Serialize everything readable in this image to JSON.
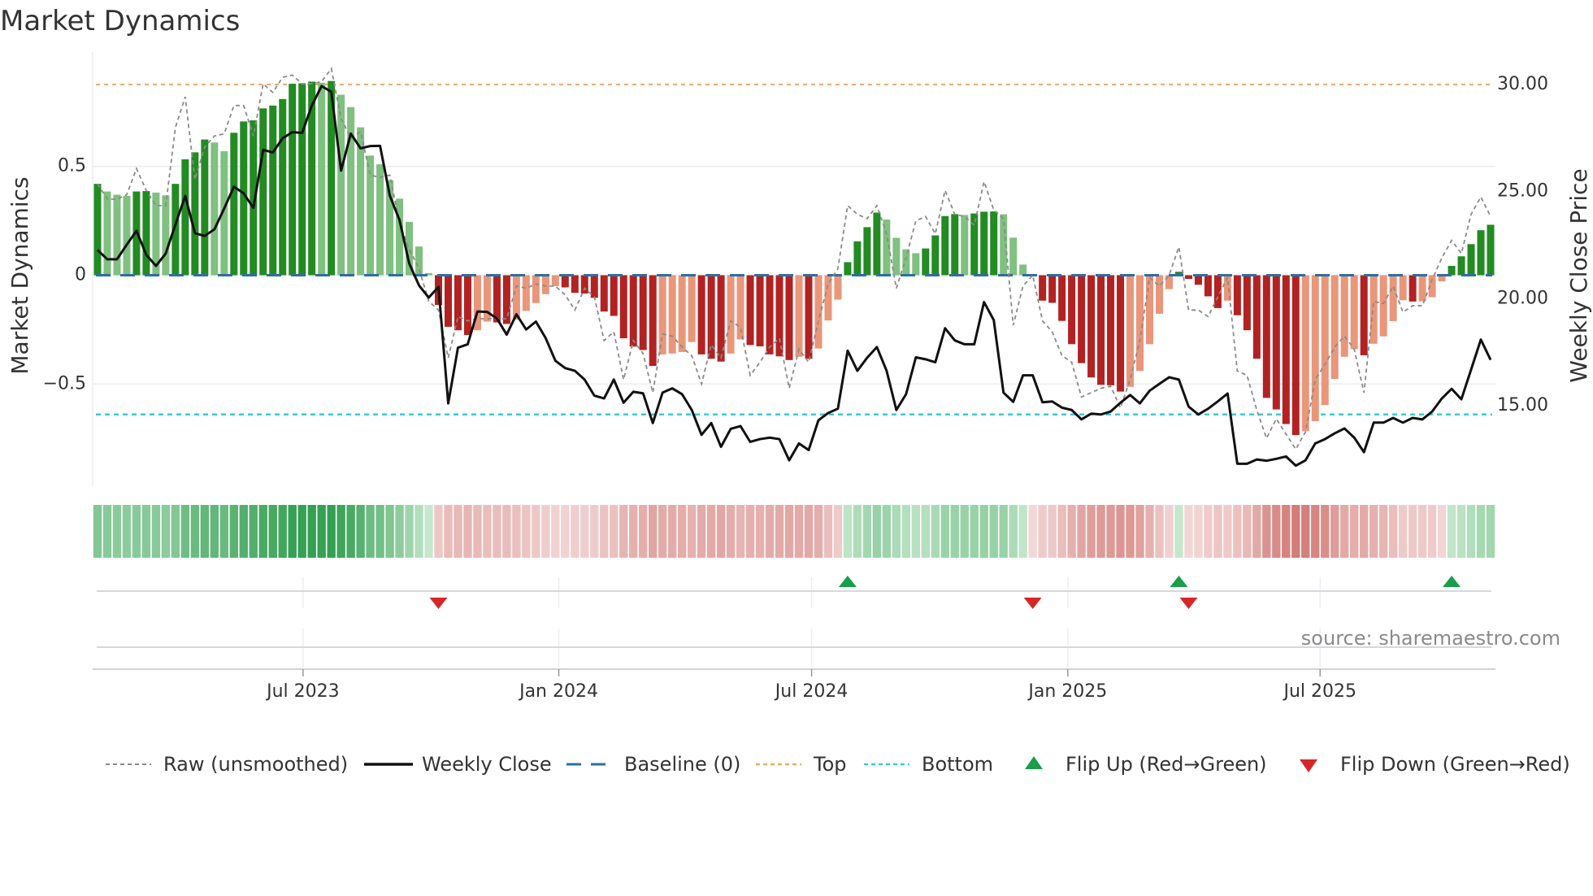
{
  "chart_data": {
    "type": "bar",
    "title": "Market Dynamics",
    "ylabel": "Market Dynamics",
    "y2label": "Weekly Close Price",
    "ylim": [
      -0.97,
      0.97
    ],
    "y2lim": [
      11.24,
      30.95
    ],
    "yticks": [
      {
        "value": 0.5,
        "label": "0.5"
      },
      {
        "value": 0,
        "label": "0"
      },
      {
        "value": -0.5,
        "label": "−0.5"
      }
    ],
    "y2ticks": [
      {
        "value": 30,
        "label": "30.00"
      },
      {
        "value": 25,
        "label": "25.00"
      },
      {
        "value": 20,
        "label": "20.00"
      },
      {
        "value": 15,
        "label": "15.00"
      }
    ],
    "x_ticks": [
      {
        "label": "Jul 2023",
        "index": 21.1
      },
      {
        "label": "Jan 2024",
        "index": 47.35
      },
      {
        "label": "Jul 2024",
        "index": 73.3
      },
      {
        "label": "Jan 2025",
        "index": 99.6
      },
      {
        "label": "Jul 2025",
        "index": 125.5
      }
    ],
    "top_level": 0.877,
    "bottom_level": -0.64,
    "baseline": 0,
    "market_dynamics": [
      0.42,
      0.385,
      0.37,
      0.365,
      0.385,
      0.387,
      0.38,
      0.367,
      0.42,
      0.533,
      0.565,
      0.624,
      0.61,
      0.57,
      0.655,
      0.707,
      0.712,
      0.767,
      0.78,
      0.81,
      0.88,
      0.882,
      0.89,
      0.885,
      0.893,
      0.83,
      0.773,
      0.68,
      0.55,
      0.51,
      0.437,
      0.352,
      0.245,
      0.132,
      0.01,
      -0.137,
      -0.237,
      -0.253,
      -0.275,
      -0.253,
      -0.213,
      -0.217,
      -0.224,
      -0.204,
      -0.164,
      -0.128,
      -0.087,
      -0.05,
      -0.056,
      -0.081,
      -0.084,
      -0.104,
      -0.167,
      -0.187,
      -0.29,
      -0.328,
      -0.344,
      -0.417,
      -0.364,
      -0.36,
      -0.353,
      -0.307,
      -0.364,
      -0.384,
      -0.397,
      -0.36,
      -0.295,
      -0.321,
      -0.327,
      -0.364,
      -0.373,
      -0.39,
      -0.375,
      -0.384,
      -0.337,
      -0.208,
      -0.112,
      0.06,
      0.156,
      0.221,
      0.288,
      0.256,
      0.172,
      0.119,
      0.101,
      0.123,
      0.183,
      0.272,
      0.281,
      0.277,
      0.284,
      0.292,
      0.293,
      0.28,
      0.173,
      0.049,
      -0.005,
      -0.117,
      -0.127,
      -0.21,
      -0.317,
      -0.404,
      -0.47,
      -0.504,
      -0.506,
      -0.535,
      -0.513,
      -0.44,
      -0.317,
      -0.177,
      -0.064,
      0.016,
      -0.017,
      -0.044,
      -0.097,
      -0.151,
      -0.117,
      -0.184,
      -0.253,
      -0.384,
      -0.564,
      -0.617,
      -0.684,
      -0.735,
      -0.717,
      -0.671,
      -0.597,
      -0.477,
      -0.375,
      -0.34,
      -0.368,
      -0.315,
      -0.281,
      -0.211,
      -0.115,
      -0.121,
      -0.12,
      -0.101,
      -0.028,
      0.043,
      0.087,
      0.143,
      0.207,
      0.232
    ],
    "raw": [
      0.42,
      0.35,
      0.35,
      0.37,
      0.49,
      0.39,
      0.32,
      0.32,
      0.68,
      0.82,
      0.44,
      0.59,
      0.64,
      0.65,
      0.78,
      0.78,
      0.64,
      0.88,
      0.84,
      0.91,
      0.92,
      0.88,
      0.88,
      0.89,
      0.95,
      0.72,
      0.63,
      0.66,
      0.46,
      0.45,
      0.46,
      0.24,
      0.12,
      0.03,
      -0.12,
      -0.16,
      -0.38,
      -0.19,
      -0.21,
      -0.2,
      -0.2,
      -0.2,
      -0.2,
      -0.05,
      -0.06,
      -0.04,
      -0.05,
      -0.05,
      -0.09,
      -0.16,
      -0.06,
      -0.1,
      -0.3,
      -0.26,
      -0.48,
      -0.3,
      -0.36,
      -0.54,
      -0.27,
      -0.28,
      -0.33,
      -0.37,
      -0.5,
      -0.32,
      -0.38,
      -0.21,
      -0.24,
      -0.46,
      -0.4,
      -0.33,
      -0.29,
      -0.52,
      -0.34,
      -0.4,
      -0.21,
      -0.04,
      0.03,
      0.32,
      0.28,
      0.26,
      0.32,
      0.19,
      -0.06,
      0.08,
      0.25,
      0.27,
      0.19,
      0.39,
      0.28,
      0.27,
      0.23,
      0.43,
      0.3,
      0.26,
      -0.23,
      -0.05,
      0.0,
      -0.21,
      -0.26,
      -0.37,
      -0.4,
      -0.56,
      -0.54,
      -0.52,
      -0.51,
      -0.61,
      -0.48,
      -0.3,
      -0.01,
      -0.05,
      0.0,
      0.13,
      -0.16,
      -0.16,
      -0.19,
      -0.1,
      -0.01,
      -0.44,
      -0.46,
      -0.62,
      -0.75,
      -0.66,
      -0.73,
      -0.8,
      -0.72,
      -0.48,
      -0.41,
      -0.33,
      -0.28,
      -0.34,
      -0.54,
      -0.12,
      -0.13,
      -0.05,
      -0.17,
      -0.14,
      -0.14,
      -0.02,
      0.08,
      0.16,
      0.1,
      0.28,
      0.36,
      0.27
    ],
    "weekly_close": [
      22.28,
      21.84,
      21.84,
      22.52,
      23.17,
      22.05,
      21.53,
      22.11,
      23.47,
      24.8,
      23.06,
      22.93,
      23.24,
      24.21,
      25.23,
      24.92,
      24.24,
      26.95,
      26.83,
      27.49,
      27.78,
      27.74,
      29.02,
      29.93,
      29.66,
      25.98,
      27.71,
      27.02,
      27.13,
      27.14,
      24.82,
      23.67,
      21.64,
      20.62,
      20.05,
      20.55,
      15.11,
      17.71,
      17.87,
      19.4,
      19.38,
      19.07,
      18.32,
      19.27,
      18.56,
      18.93,
      18.16,
      17.1,
      16.76,
      16.63,
      16.22,
      15.47,
      15.34,
      16.22,
      15.14,
      15.65,
      15.58,
      14.19,
      15.61,
      15.81,
      15.54,
      14.8,
      13.64,
      14.19,
      13.08,
      13.92,
      14.05,
      13.31,
      13.44,
      13.51,
      13.44,
      12.45,
      13.24,
      12.93,
      14.32,
      14.66,
      14.86,
      17.57,
      16.63,
      17.24,
      17.74,
      16.63,
      14.8,
      15.54,
      17.26,
      17.17,
      17.03,
      18.62,
      18.05,
      17.87,
      17.87,
      19.84,
      19.0,
      15.61,
      15.18,
      16.42,
      16.42,
      15.16,
      15.2,
      14.91,
      14.8,
      14.36,
      14.63,
      14.59,
      14.73,
      15.14,
      15.5,
      15.11,
      15.7,
      16.02,
      16.33,
      16.22,
      14.96,
      14.59,
      14.86,
      15.2,
      15.57,
      12.29,
      12.29,
      12.49,
      12.43,
      12.52,
      12.63,
      12.2,
      12.45,
      13.24,
      13.44,
      13.71,
      13.94,
      13.51,
      12.83,
      14.21,
      14.21,
      14.43,
      14.21,
      14.43,
      14.36,
      14.73,
      15.34,
      15.79,
      15.3,
      16.69,
      18.09,
      17.14
    ],
    "flip_up_indices": [
      77,
      111,
      139
    ],
    "flip_down_indices": [
      35,
      96,
      112
    ],
    "legend": {
      "placement": "bottom",
      "raw": "Raw (unsmoothed)",
      "close": "Weekly Close",
      "baseline": "Baseline (0)",
      "top": "Top",
      "bottom": "Bottom",
      "flip_up": "Flip Up (Red→Green)",
      "flip_down": "Flip Down (Green→Red)"
    },
    "source": "source: sharemaestro.com",
    "colors": {
      "green_strong": "#228b22",
      "green_weak": "#80c080",
      "red_strong": "#b22222",
      "red_weak": "#e9967a",
      "raw": "#8a8a8a",
      "close": "#111111",
      "baseline": "#2e6fa0",
      "top": "#f0a868",
      "bottom": "#3cc8d8",
      "flip_up": "#1a9e4a",
      "flip_down": "#d62728"
    }
  }
}
